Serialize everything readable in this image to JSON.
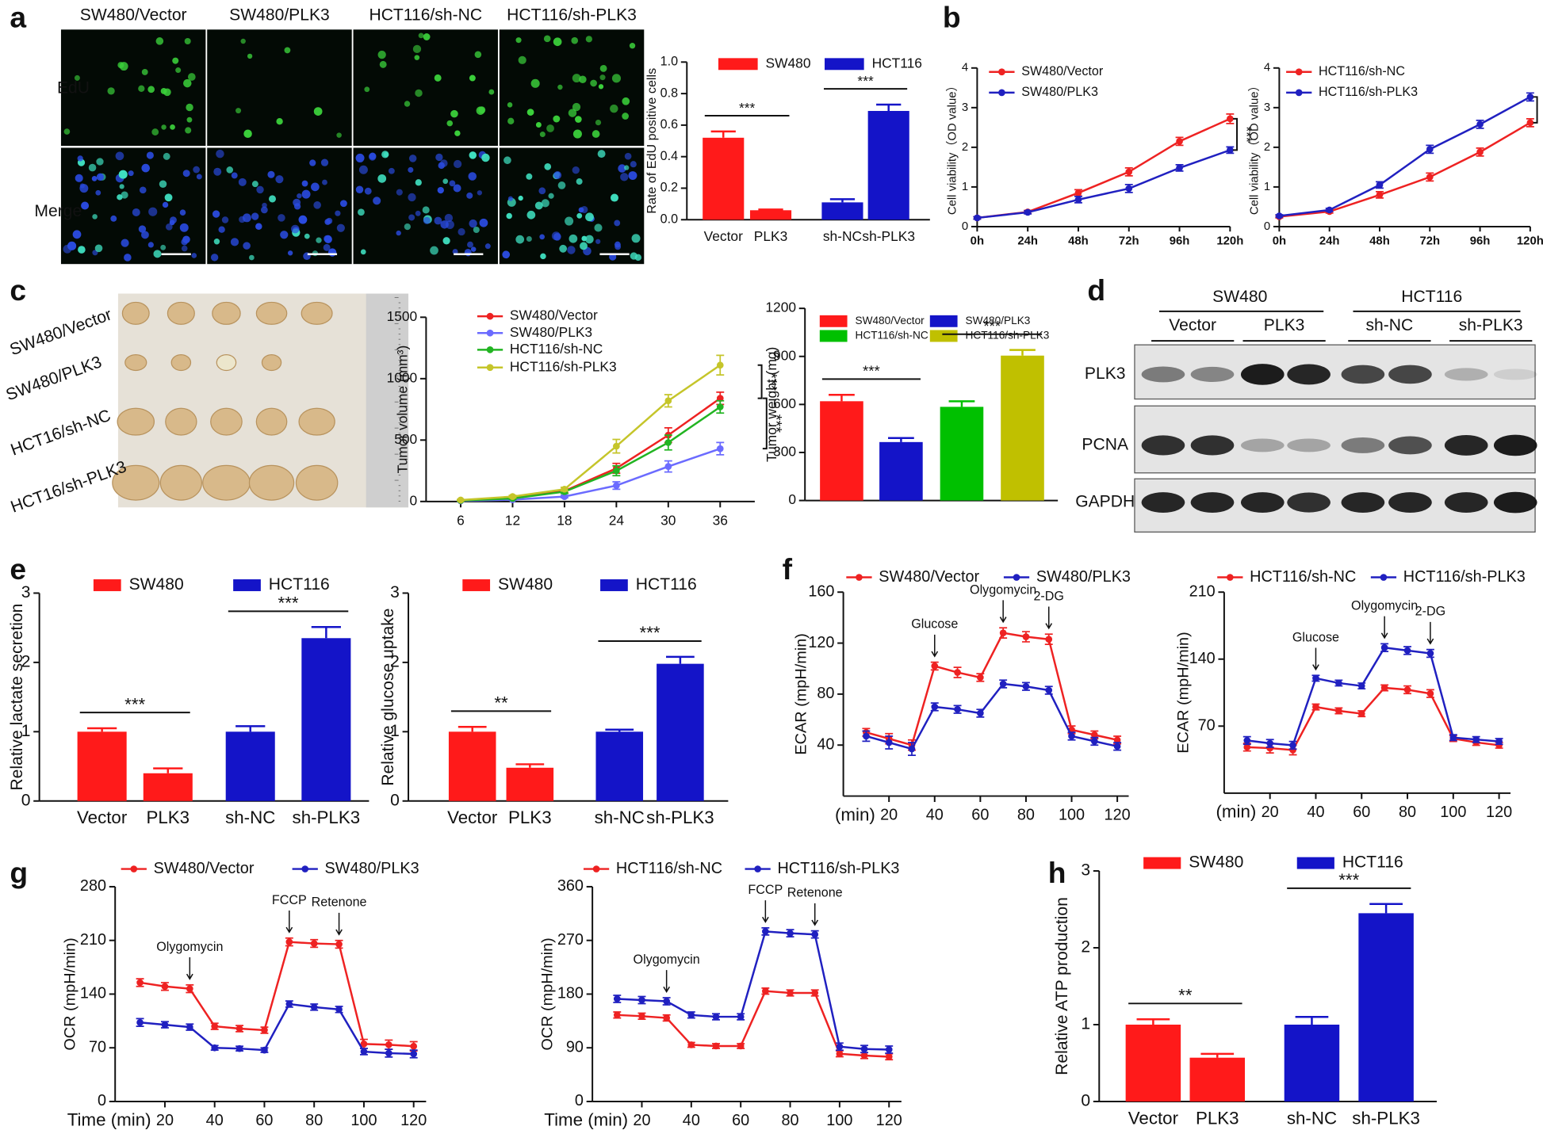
{
  "panel_labels": [
    "a",
    "b",
    "c",
    "d",
    "e",
    "f",
    "g",
    "h"
  ],
  "microscopy": {
    "columns": [
      "SW480/Vector",
      "SW480/PLK3",
      "HCT116/sh-NC",
      "HCT116/sh-PLK3"
    ],
    "rows": [
      "EdU",
      "Merge"
    ]
  },
  "tumor_photo": {
    "rows": [
      "SW480/Vector",
      "SW480/PLK3",
      "HCT16/sh-NC",
      "HCT16/sh-PLK3"
    ]
  },
  "western_blot": {
    "groups": [
      "SW480",
      "HCT116"
    ],
    "lanes": [
      "Vector",
      "PLK3",
      "sh-NC",
      "sh-PLK3"
    ],
    "proteins": [
      "PLK3",
      "PCNA",
      "GAPDH"
    ]
  },
  "chart_data": [
    {
      "type": "bar",
      "ylabel": "Rate of EdU positive cells",
      "categories": [
        "Vector",
        "PLK3",
        "sh-NC",
        "sh-PLK3"
      ],
      "series": [
        {
          "name": "SW480",
          "color": "#ff1a1a",
          "values": [
            0.52,
            0.06,
            null,
            null
          ],
          "errors": [
            0.04,
            0.005,
            null,
            null
          ]
        },
        {
          "name": "HCT116",
          "color": "#1414c8",
          "values": [
            null,
            null,
            0.11,
            0.69
          ],
          "errors": [
            null,
            null,
            0.02,
            0.04
          ]
        }
      ],
      "ylim": [
        0,
        1
      ],
      "yticks": [
        {
          "value": 0,
          "label": "0.0"
        },
        0.2,
        0.4,
        0.6,
        0.8,
        {
          "value": 1,
          "label": "1.0"
        }
      ],
      "annotations": [
        {
          "label": "***",
          "between": [
            0,
            1
          ]
        },
        {
          "label": "***",
          "between": [
            2,
            3
          ]
        }
      ]
    },
    {
      "type": "line",
      "ylabel": "Cell viability（OD value）",
      "categories": [
        "0h",
        "24h",
        "48h",
        "72h",
        "96h",
        "120h"
      ],
      "series": [
        {
          "name": "SW480/Vector",
          "color": "#ee2222",
          "values": [
            0.22,
            0.37,
            0.85,
            1.38,
            2.15,
            2.72
          ],
          "errors": [
            0.03,
            0.04,
            0.08,
            0.1,
            0.1,
            0.12
          ]
        },
        {
          "name": "SW480/PLK3",
          "color": "#2020c0",
          "values": [
            0.22,
            0.36,
            0.68,
            0.96,
            1.48,
            1.93
          ],
          "errors": [
            0.03,
            0.04,
            0.08,
            0.1,
            0.08,
            0.08
          ]
        }
      ],
      "ylim": [
        0,
        4
      ],
      "yticks": [
        0,
        1,
        2,
        3,
        4
      ],
      "annotations": [
        {
          "label": "***",
          "between": [
            0,
            1
          ]
        }
      ]
    },
    {
      "type": "line",
      "ylabel": "Cell viability（OD value）",
      "categories": [
        "0h",
        "24h",
        "48h",
        "72h",
        "96h",
        "120h"
      ],
      "series": [
        {
          "name": "HCT116/sh-NC",
          "color": "#ee2222",
          "values": [
            0.25,
            0.38,
            0.8,
            1.25,
            1.88,
            2.62
          ],
          "errors": [
            0.03,
            0.04,
            0.08,
            0.1,
            0.1,
            0.1
          ]
        },
        {
          "name": "HCT116/sh-PLK3",
          "color": "#2020c0",
          "values": [
            0.27,
            0.42,
            1.05,
            1.95,
            2.58,
            3.27
          ],
          "errors": [
            0.03,
            0.04,
            0.08,
            0.1,
            0.1,
            0.1
          ]
        }
      ],
      "ylim": [
        0,
        4
      ],
      "yticks": [
        0,
        1,
        2,
        3,
        4
      ],
      "annotations": [
        {
          "label": "***",
          "between": [
            1,
            0
          ]
        }
      ]
    },
    {
      "type": "line",
      "ylabel": "Tumor volume (mm³)",
      "x": [
        6,
        12,
        18,
        24,
        30,
        36
      ],
      "xlim": [
        2,
        40
      ],
      "xticks": [
        6,
        12,
        18,
        24,
        30,
        36
      ],
      "series": [
        {
          "name": "SW480/Vector",
          "color": "#ee2222",
          "values": [
            10,
            30,
            85,
            270,
            540,
            840
          ],
          "errors": [
            5,
            10,
            15,
            40,
            60,
            50
          ]
        },
        {
          "name": "SW480/PLK3",
          "color": "#6b6bff",
          "values": [
            5,
            15,
            40,
            130,
            285,
            430
          ],
          "errors": [
            3,
            5,
            10,
            30,
            45,
            50
          ]
        },
        {
          "name": "HCT116/sh-NC",
          "color": "#22b422",
          "values": [
            8,
            25,
            80,
            250,
            480,
            770
          ],
          "errors": [
            4,
            8,
            15,
            40,
            60,
            50
          ]
        },
        {
          "name": "HCT116/sh-PLK3",
          "color": "#c5c52a",
          "values": [
            12,
            40,
            100,
            450,
            820,
            1110
          ],
          "errors": [
            5,
            10,
            15,
            55,
            50,
            80
          ]
        }
      ],
      "ylim": [
        0,
        1500
      ],
      "yticks": [
        0,
        500,
        1000,
        1500
      ],
      "annotations": [
        {
          "label": "***",
          "between": [
            3,
            0
          ]
        },
        {
          "label": "***",
          "between": [
            0,
            1
          ]
        }
      ]
    },
    {
      "type": "bar",
      "ylabel": "Tumor weight (mg)",
      "categories": [
        null,
        null,
        null,
        null
      ],
      "series": [
        {
          "name": "SW480/Vector",
          "color": "#ff1a1a",
          "values": [
            620,
            null,
            null,
            null
          ],
          "errors": [
            40,
            null,
            null,
            null
          ]
        },
        {
          "name": "SW480/PLK3",
          "color": "#1414c8",
          "values": [
            null,
            365,
            null,
            null
          ],
          "errors": [
            null,
            25,
            null,
            null
          ]
        },
        {
          "name": "HCT116/sh-NC",
          "color": "#00c000",
          "values": [
            null,
            null,
            585,
            null
          ],
          "errors": [
            null,
            null,
            35,
            null
          ]
        },
        {
          "name": "HCT116/sh-PLK3",
          "color": "#c0c000",
          "values": [
            null,
            null,
            null,
            905
          ],
          "errors": [
            null,
            null,
            null,
            35
          ]
        }
      ],
      "ylim": [
        0,
        1200
      ],
      "yticks": [
        0,
        300,
        600,
        900,
        1200
      ],
      "annotations": [
        {
          "label": "***",
          "between": [
            0,
            1
          ]
        },
        {
          "label": "***",
          "between": [
            2,
            3
          ]
        }
      ]
    },
    {
      "type": "bar",
      "ylabel": "Relative lactate secretion",
      "categories": [
        "Vector",
        "PLK3",
        "sh-NC",
        "sh-PLK3"
      ],
      "series": [
        {
          "name": "SW480",
          "color": "#ff1a1a",
          "values": [
            1.0,
            0.4,
            null,
            null
          ],
          "errors": [
            0.05,
            0.07,
            null,
            null
          ]
        },
        {
          "name": "HCT116",
          "color": "#1414c8",
          "values": [
            null,
            null,
            1.0,
            2.35
          ],
          "errors": [
            null,
            null,
            0.08,
            0.16
          ]
        }
      ],
      "ylim": [
        0,
        3
      ],
      "yticks": [
        0,
        1,
        2,
        3
      ],
      "annotations": [
        {
          "label": "***",
          "between": [
            0,
            1
          ]
        },
        {
          "label": "***",
          "between": [
            2,
            3
          ]
        }
      ]
    },
    {
      "type": "bar",
      "ylabel": "Relative glucose uptake",
      "categories": [
        "Vector",
        "PLK3",
        "sh-NC",
        "sh-PLK3"
      ],
      "series": [
        {
          "name": "SW480",
          "color": "#ff1a1a",
          "values": [
            1.0,
            0.48,
            null,
            null
          ],
          "errors": [
            0.07,
            0.05,
            null,
            null
          ]
        },
        {
          "name": "HCT116",
          "color": "#1414c8",
          "values": [
            null,
            null,
            1.0,
            1.98
          ],
          "errors": [
            null,
            null,
            0.03,
            0.1
          ]
        }
      ],
      "ylim": [
        0,
        3
      ],
      "yticks": [
        0,
        1,
        2,
        3
      ],
      "annotations": [
        {
          "label": "**",
          "between": [
            0,
            1
          ]
        },
        {
          "label": "***",
          "between": [
            2,
            3
          ]
        }
      ]
    },
    {
      "type": "line",
      "ylabel": "ECAR (mpH/min)",
      "xlabel": "(min)",
      "x": [
        10,
        20,
        30,
        40,
        50,
        60,
        70,
        80,
        90,
        100,
        110,
        120
      ],
      "xlim": [
        0,
        125
      ],
      "xticks": [
        20,
        40,
        60,
        80,
        100,
        120
      ],
      "series": [
        {
          "name": "SW480/Vector",
          "color": "#ee2222",
          "values": [
            50,
            45,
            40,
            102,
            97,
            93,
            128,
            125,
            123,
            52,
            48,
            44
          ],
          "errors": [
            3,
            4,
            4,
            3,
            4,
            3,
            4,
            4,
            4,
            3,
            3,
            3
          ]
        },
        {
          "name": "SW480/PLK3",
          "color": "#2020c0",
          "values": [
            47,
            42,
            37,
            70,
            68,
            65,
            88,
            86,
            83,
            47,
            43,
            39
          ],
          "errors": [
            4,
            5,
            5,
            3,
            3,
            3,
            3,
            3,
            3,
            3,
            3,
            3
          ]
        }
      ],
      "ylim": [
        0,
        160
      ],
      "yticks": [
        40,
        80,
        120,
        160
      ],
      "events": [
        {
          "label": "Glucose",
          "x": 40
        },
        {
          "label": "Olygomycin",
          "x": 70
        },
        {
          "label": "2-DG",
          "x": 90
        }
      ]
    },
    {
      "type": "line",
      "ylabel": "ECAR (mpH/min)",
      "xlabel": "(min)",
      "x": [
        10,
        20,
        30,
        40,
        50,
        60,
        70,
        80,
        90,
        100,
        110,
        120
      ],
      "xlim": [
        0,
        125
      ],
      "xticks": [
        20,
        40,
        60,
        80,
        100,
        120
      ],
      "series": [
        {
          "name": "HCT116/sh-NC",
          "color": "#ee2222",
          "values": [
            48,
            47,
            45,
            90,
            86,
            83,
            110,
            108,
            104,
            57,
            53,
            50
          ],
          "errors": [
            4,
            5,
            5,
            3,
            3,
            3,
            3,
            4,
            4,
            3,
            3,
            3
          ]
        },
        {
          "name": "HCT116/sh-PLK3",
          "color": "#2020c0",
          "values": [
            55,
            52,
            50,
            120,
            115,
            112,
            152,
            149,
            146,
            58,
            56,
            54
          ],
          "errors": [
            4,
            4,
            4,
            3,
            3,
            3,
            4,
            4,
            4,
            3,
            3,
            3
          ]
        }
      ],
      "ylim": [
        0,
        210
      ],
      "yticks": [
        70,
        140,
        210
      ],
      "events": [
        {
          "label": "Glucose",
          "x": 40
        },
        {
          "label": "Olygomycin",
          "x": 70
        },
        {
          "label": "2-DG",
          "x": 90
        }
      ]
    },
    {
      "type": "line",
      "ylabel": "OCR (mpH/min)",
      "xlabel": "Time (min)",
      "x": [
        10,
        20,
        30,
        40,
        50,
        60,
        70,
        80,
        90,
        100,
        110,
        120
      ],
      "xlim": [
        0,
        125
      ],
      "xticks": [
        20,
        40,
        60,
        80,
        100,
        120
      ],
      "series": [
        {
          "name": "SW480/Vector",
          "color": "#ee2222",
          "values": [
            155,
            150,
            147,
            98,
            95,
            93,
            208,
            206,
            205,
            75,
            74,
            72
          ],
          "errors": [
            5,
            5,
            5,
            4,
            4,
            4,
            5,
            5,
            5,
            6,
            6,
            6
          ]
        },
        {
          "name": "SW480/PLK3",
          "color": "#2020c0",
          "values": [
            103,
            100,
            97,
            70,
            69,
            67,
            127,
            123,
            120,
            65,
            63,
            62
          ],
          "errors": [
            5,
            4,
            4,
            3,
            3,
            3,
            4,
            4,
            4,
            4,
            5,
            5
          ]
        }
      ],
      "ylim": [
        0,
        280
      ],
      "yticks": [
        0,
        70,
        140,
        210,
        280
      ],
      "events": [
        {
          "label": "Olygomycin",
          "x": 30
        },
        {
          "label": "FCCP",
          "x": 70
        },
        {
          "label": "Retenone",
          "x": 90
        }
      ]
    },
    {
      "type": "line",
      "ylabel": "OCR (mpH/min)",
      "xlabel": "Time (min)",
      "x": [
        10,
        20,
        30,
        40,
        50,
        60,
        70,
        80,
        90,
        100,
        110,
        120
      ],
      "xlim": [
        0,
        125
      ],
      "xticks": [
        20,
        40,
        60,
        80,
        100,
        120
      ],
      "series": [
        {
          "name": "HCT116/sh-NC",
          "color": "#ee2222",
          "values": [
            145,
            143,
            140,
            95,
            93,
            93,
            185,
            182,
            182,
            80,
            77,
            75
          ],
          "errors": [
            5,
            5,
            5,
            4,
            4,
            4,
            5,
            5,
            5,
            5,
            5,
            5
          ]
        },
        {
          "name": "HCT116/sh-PLK3",
          "color": "#2020c0",
          "values": [
            172,
            170,
            168,
            145,
            142,
            142,
            285,
            282,
            280,
            92,
            88,
            87
          ],
          "errors": [
            6,
            6,
            6,
            5,
            5,
            5,
            6,
            6,
            6,
            6,
            6,
            6
          ]
        }
      ],
      "ylim": [
        0,
        360
      ],
      "yticks": [
        0,
        90,
        180,
        270,
        360
      ],
      "events": [
        {
          "label": "Olygomycin",
          "x": 30
        },
        {
          "label": "FCCP",
          "x": 70
        },
        {
          "label": "Retenone",
          "x": 90
        }
      ]
    },
    {
      "type": "bar",
      "ylabel": "Relative ATP production",
      "categories": [
        "Vector",
        "PLK3",
        "sh-NC",
        "sh-PLK3"
      ],
      "series": [
        {
          "name": "SW480",
          "color": "#ff1a1a",
          "values": [
            1.0,
            0.57,
            null,
            null
          ],
          "errors": [
            0.07,
            0.05,
            null,
            null
          ]
        },
        {
          "name": "HCT116",
          "color": "#1414c8",
          "values": [
            null,
            null,
            1.0,
            2.45
          ],
          "errors": [
            null,
            null,
            0.1,
            0.12
          ]
        }
      ],
      "ylim": [
        0,
        3
      ],
      "yticks": [
        0,
        1,
        2,
        3
      ],
      "annotations": [
        {
          "label": "**",
          "between": [
            0,
            1
          ]
        },
        {
          "label": "***",
          "between": [
            2,
            3
          ]
        }
      ]
    }
  ]
}
